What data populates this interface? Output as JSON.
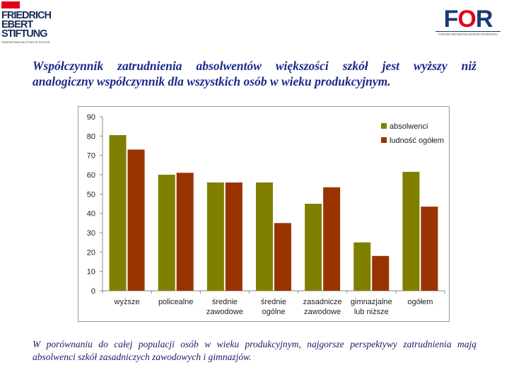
{
  "logos": {
    "left": {
      "lines": [
        "FRIEDRICH",
        "EBERT",
        "STIFTUNG"
      ],
      "tagline": "PRZEDSTAWICIELSTWO W POLSCE"
    },
    "right": {
      "text": "FOR",
      "tagline": "FORUM OBYWATELSKIEGO ROZWOJU"
    }
  },
  "title": {
    "line1": "Współczynnik zatrudnienia absolwentów większości szkół jest wyższy niż",
    "line2": "analogiczny współczynnik dla wszystkich osób w wieku produkcyjnym."
  },
  "footer": {
    "text": "W porównaniu do całej populacji osób w wieku produkcyjnym, najgorsze perspektywy zatrudnienia mają absolwenci szkół zasadniczych zawodowych i gimnazjów."
  },
  "colors": {
    "absolwenci": "#808000",
    "ludnosc": "#993300",
    "title": "#1a2a8a"
  },
  "chart_data": {
    "type": "bar",
    "categories": [
      [
        "wyższe"
      ],
      [
        "policealne"
      ],
      [
        "średnie",
        "zawodowe"
      ],
      [
        "średnie",
        "ogólne"
      ],
      [
        "zasadnicze",
        "zawodowe"
      ],
      [
        "gimnazjalne",
        "lub niższe"
      ],
      [
        "ogółem"
      ]
    ],
    "series": [
      {
        "name": "absolwenci",
        "values": [
          80.5,
          60,
          56,
          56,
          45,
          25,
          61.5
        ]
      },
      {
        "name": "ludność ogółem",
        "values": [
          73,
          61,
          56,
          35,
          53.5,
          18,
          43.5
        ]
      }
    ],
    "ylim": [
      0,
      90
    ],
    "yticks": [
      0,
      10,
      20,
      30,
      40,
      50,
      60,
      70,
      80,
      90
    ],
    "grid": false,
    "legend": "top-right"
  }
}
